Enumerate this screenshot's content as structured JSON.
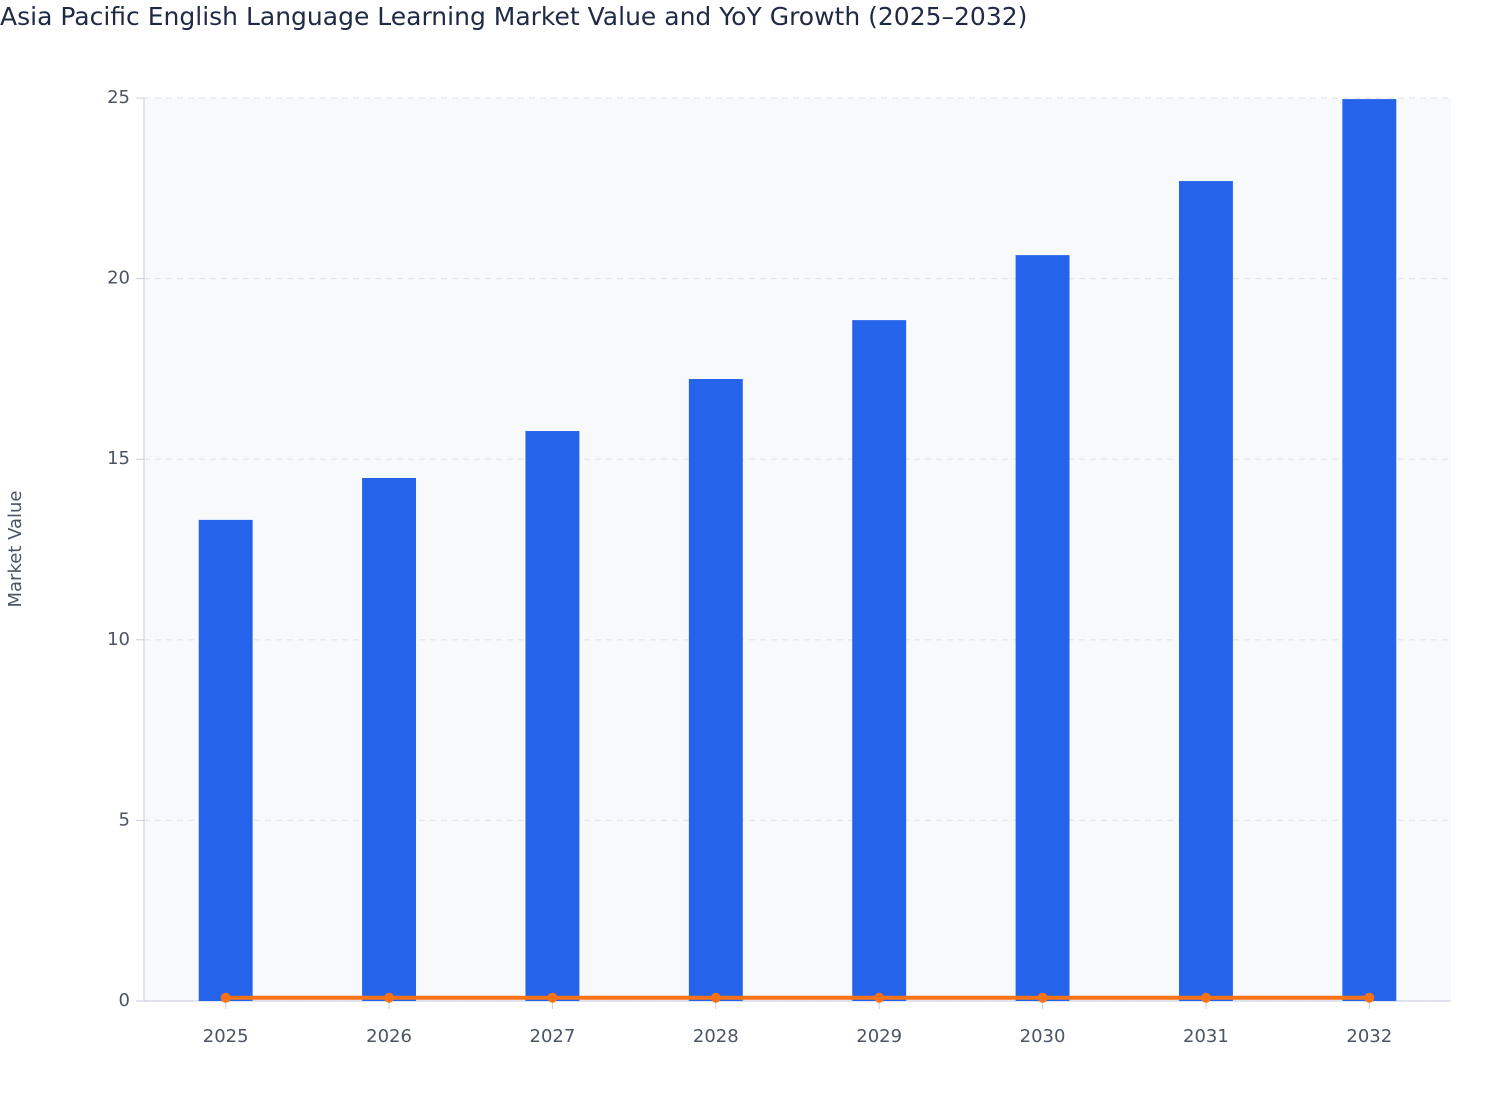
{
  "chart_data": {
    "type": "bar_line",
    "title": "Asia Pacific English Language Learning Market Value and YoY Growth (2025–2032)",
    "y_label": "Market Value",
    "categories": [
      "2025",
      "2026",
      "2027",
      "2028",
      "2029",
      "2030",
      "2031",
      "2032"
    ],
    "series": [
      {
        "type": "bar",
        "color": "#2563eb",
        "values": [
          13.32,
          14.48,
          15.78,
          17.22,
          18.85,
          20.65,
          22.7,
          24.97
        ]
      },
      {
        "type": "line",
        "color": "#f97316",
        "values": [
          0.09,
          0.09,
          0.09,
          0.09,
          0.09,
          0.09,
          0.09,
          0.09
        ]
      }
    ],
    "ylim": [
      0,
      25
    ],
    "yticks": [
      0,
      5,
      10,
      15,
      20,
      25
    ],
    "grid": true
  }
}
